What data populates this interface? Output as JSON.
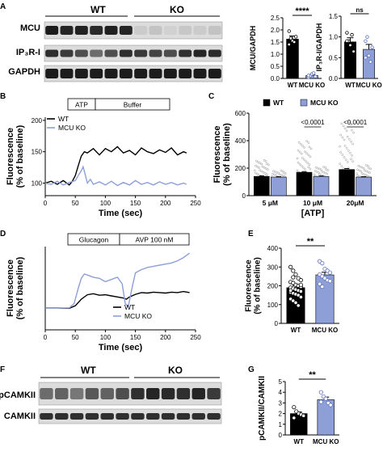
{
  "panels": {
    "A": {
      "letter": "A",
      "wt": "WT",
      "ko": "KO",
      "rows": [
        "MCU",
        "IP₃R-I",
        "GAPDH"
      ]
    },
    "F": {
      "letter": "F",
      "wt": "WT",
      "ko": "KO",
      "rows": [
        "pCAMKII",
        "CAMKII"
      ]
    }
  },
  "chart_data": [
    {
      "id": "A1",
      "type": "bar",
      "categories": [
        "WT",
        "MCU KO"
      ],
      "values": [
        1.62,
        0.12
      ],
      "errors": [
        0.13,
        0.04
      ],
      "points": [
        [
          1.95,
          1.65,
          1.55,
          1.5,
          1.72,
          1.4
        ],
        [
          0.05,
          0.1,
          0.18,
          0.22,
          0.08,
          0.12
        ]
      ],
      "colors": [
        "#000000",
        "#8e9fd8"
      ],
      "ylabel": "MCU/GAPDH",
      "ylim": [
        0,
        2.5
      ],
      "yticks": [
        0.0,
        0.5,
        1.0,
        1.5,
        2.0,
        2.5
      ],
      "significance": "****"
    },
    {
      "id": "A2",
      "type": "bar",
      "categories": [
        "WT",
        "MCU KO"
      ],
      "values": [
        0.88,
        0.7
      ],
      "errors": [
        0.1,
        0.12
      ],
      "points": [
        [
          1.1,
          0.9,
          0.8,
          1.05,
          0.65,
          0.9
        ],
        [
          0.9,
          1.0,
          0.55,
          0.4,
          0.75,
          0.5
        ]
      ],
      "colors": [
        "#000000",
        "#8e9fd8"
      ],
      "ylabel": "IP₃R-I/GAPDH",
      "ylim": [
        0,
        1.5
      ],
      "yticks": [
        0.0,
        0.5,
        1.0,
        1.5
      ],
      "significance": "ns"
    },
    {
      "id": "B",
      "type": "line",
      "xlabel": "Time (sec)",
      "ylabel": "Fluorescence\n(% of baseline)",
      "xlim": [
        0,
        250
      ],
      "ylim": [
        80,
        205
      ],
      "xticks": [
        0,
        50,
        100,
        150,
        200,
        250
      ],
      "yticks": [
        100,
        150,
        200
      ],
      "stim": [
        "ATP",
        "Buffer"
      ],
      "series": [
        {
          "name": "WT",
          "color": "#000000",
          "x": [
            0,
            10,
            20,
            30,
            40,
            45,
            50,
            55,
            60,
            65,
            70,
            80,
            90,
            100,
            110,
            120,
            130,
            140,
            150,
            160,
            170,
            180,
            190,
            200,
            210,
            220,
            230,
            235
          ],
          "y": [
            100,
            103,
            98,
            104,
            97,
            103,
            112,
            128,
            143,
            150,
            148,
            155,
            145,
            155,
            150,
            158,
            148,
            152,
            145,
            156,
            150,
            147,
            153,
            149,
            156,
            145,
            150,
            148
          ]
        },
        {
          "name": "MCU KO",
          "color": "#8e9fd8",
          "x": [
            0,
            10,
            20,
            30,
            40,
            50,
            55,
            60,
            63,
            67,
            70,
            75,
            80,
            90,
            100,
            110,
            120,
            130,
            140,
            150,
            160,
            170,
            180,
            190,
            200,
            210,
            220,
            230,
            235
          ],
          "y": [
            100,
            98,
            103,
            97,
            101,
            104,
            112,
            120,
            126,
            112,
            100,
            106,
            98,
            102,
            97,
            103,
            96,
            101,
            97,
            104,
            98,
            101,
            97,
            102,
            98,
            101,
            97,
            100,
            98
          ]
        }
      ]
    },
    {
      "id": "C",
      "type": "bar",
      "categories": [
        "5 μM",
        "10 μM",
        "20μM"
      ],
      "xlabel": "[ATP]",
      "ylabel": "Fluorescence\n(% of baseline)",
      "ylim": [
        0,
        600
      ],
      "yticks": [
        0,
        200,
        400,
        600
      ],
      "series": [
        {
          "name": "WT",
          "color": "#000000",
          "values": [
            140,
            170,
            190
          ],
          "errors": [
            4,
            5,
            7
          ]
        },
        {
          "name": "MCU KO",
          "color": "#8e9fd8",
          "values": [
            135,
            140,
            135
          ],
          "errors": [
            3,
            3,
            3
          ]
        }
      ],
      "annotations": [
        "<0.0001",
        "<0.0001"
      ]
    },
    {
      "id": "D",
      "type": "line",
      "xlabel": "Time (sec)",
      "ylabel": "Fluorescence\n(% of baseline)",
      "xlim": [
        0,
        250
      ],
      "ylim": [
        0,
        380
      ],
      "xticks": [
        0,
        50,
        100,
        150,
        200,
        250
      ],
      "stim": [
        "Glucagon",
        "AVP 100 nM"
      ],
      "series": [
        {
          "name": "WT",
          "color": "#000000",
          "x": [
            0,
            20,
            40,
            50,
            60,
            70,
            80,
            90,
            100,
            110,
            120,
            130,
            135,
            140,
            150,
            160,
            170,
            180,
            190,
            200,
            210,
            220,
            230,
            240
          ],
          "y": [
            100,
            100,
            98,
            110,
            140,
            160,
            165,
            158,
            160,
            155,
            150,
            145,
            140,
            150,
            162,
            170,
            168,
            172,
            170,
            168,
            172,
            170,
            175,
            170
          ]
        },
        {
          "name": "MCU KO",
          "color": "#8e9fd8",
          "x": [
            0,
            20,
            40,
            48,
            55,
            60,
            65,
            70,
            80,
            90,
            100,
            110,
            120,
            128,
            133,
            138,
            145,
            150,
            160,
            170,
            180,
            190,
            200,
            210,
            220,
            230,
            240
          ],
          "y": [
            100,
            100,
            100,
            120,
            190,
            235,
            255,
            250,
            240,
            235,
            220,
            230,
            240,
            210,
            120,
            105,
            200,
            260,
            275,
            285,
            290,
            295,
            300,
            305,
            315,
            330,
            350
          ]
        }
      ]
    },
    {
      "id": "E",
      "type": "bar",
      "categories": [
        "WT",
        "MCU KO"
      ],
      "values": [
        190,
        258
      ],
      "errors": [
        12,
        14
      ],
      "points": [
        [
          300,
          280,
          260,
          240,
          230,
          220,
          215,
          205,
          200,
          195,
          190,
          185,
          180,
          175,
          170,
          165,
          160,
          155,
          150,
          140,
          130,
          120,
          110,
          95,
          205,
          175,
          245
        ],
        [
          330,
          320,
          290,
          280,
          270,
          260,
          250,
          240,
          230,
          225,
          210,
          195
        ]
      ],
      "colors": [
        "#000000",
        "#8e9fd8"
      ],
      "ylabel": "Fluorescence\n(% of baseline)",
      "ylim": [
        0,
        400
      ],
      "yticks": [
        0,
        100,
        200,
        300,
        400
      ],
      "significance": "**"
    },
    {
      "id": "G",
      "type": "bar",
      "categories": [
        "WT",
        "MCU KO"
      ],
      "values": [
        2.0,
        3.3
      ],
      "errors": [
        0.15,
        0.25
      ],
      "points": [
        [
          2.6,
          2.2,
          2.0,
          1.9,
          1.8,
          1.6
        ],
        [
          4.0,
          3.6,
          3.4,
          3.0,
          2.8,
          3.1
        ]
      ],
      "colors": [
        "#000000",
        "#8e9fd8"
      ],
      "ylabel": "pCAMKII/CAMKII",
      "ylim": [
        0,
        5
      ],
      "yticks": [
        0,
        1,
        2,
        3,
        4,
        5
      ],
      "significance": "**"
    }
  ]
}
